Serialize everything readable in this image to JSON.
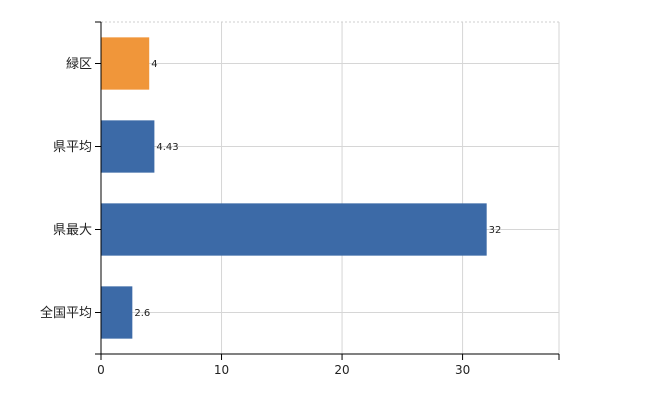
{
  "chart_data": {
    "type": "bar",
    "orientation": "horizontal",
    "title": "",
    "xlabel": "",
    "ylabel": "",
    "categories": [
      "緑区",
      "県平均",
      "県最大",
      "全国平均"
    ],
    "values": [
      4,
      4.43,
      32,
      2.6
    ],
    "value_labels": [
      "4",
      "4.43",
      "32",
      "2.6"
    ],
    "bar_colors": [
      "#f0963a",
      "#3c6aa7",
      "#3c6aa7",
      "#3c6aa7"
    ],
    "xlim": [
      0,
      38
    ],
    "xticks": [
      0,
      10,
      20,
      30
    ],
    "grid": true,
    "legend": "none"
  }
}
